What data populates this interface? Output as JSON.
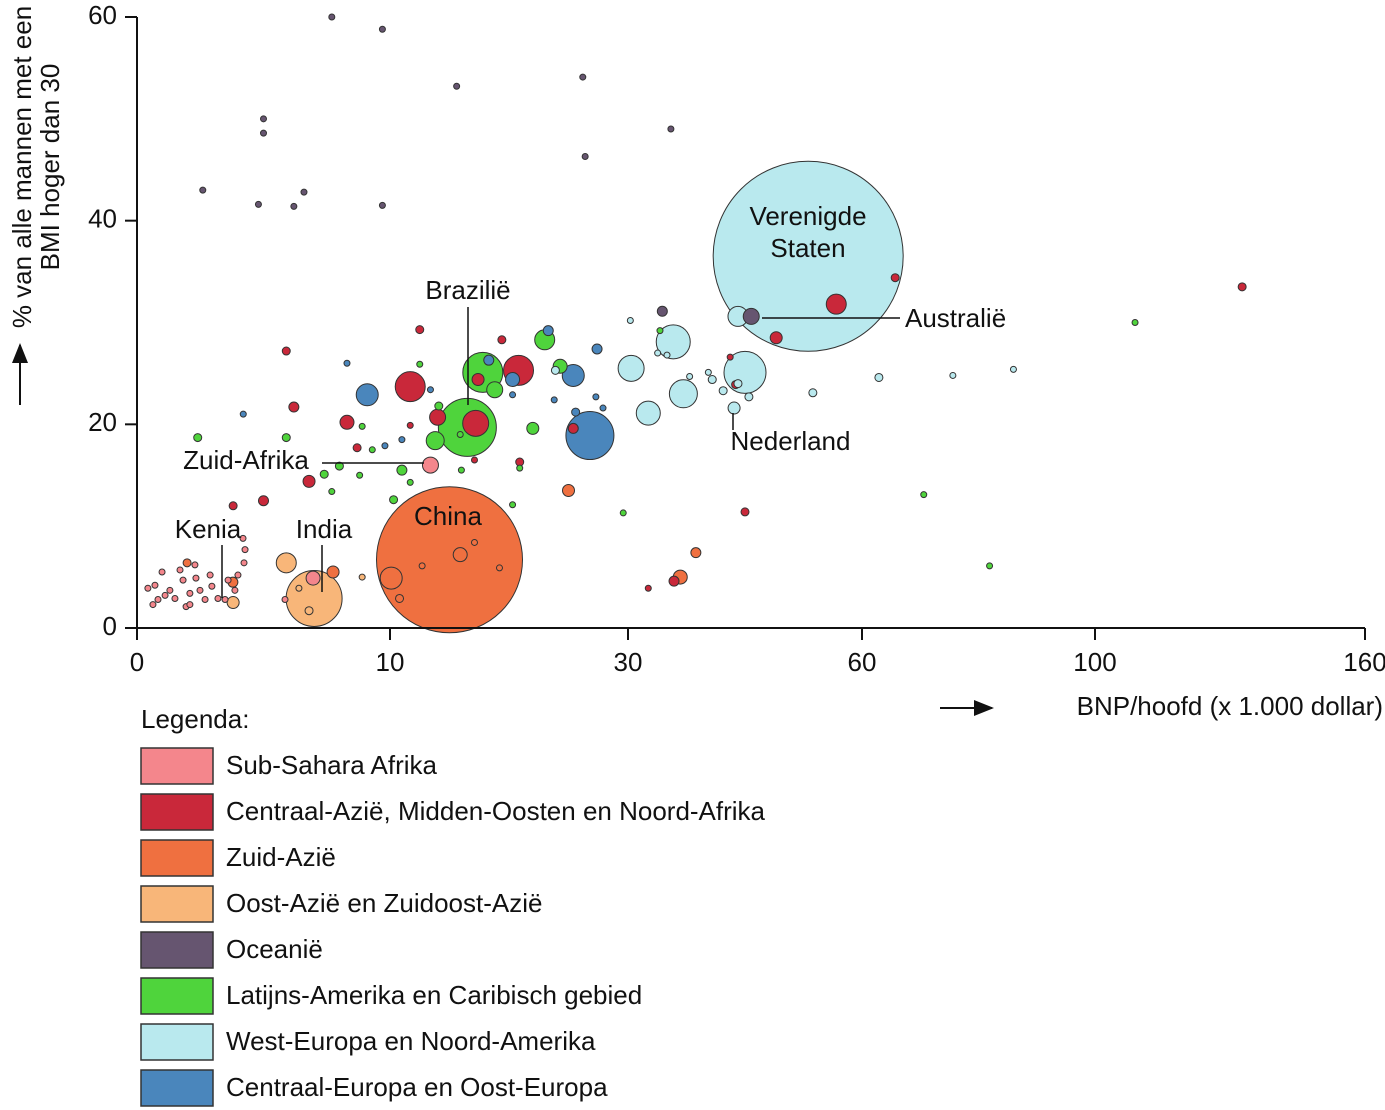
{
  "chart_data": {
    "type": "bubble",
    "y_label": "% van alle mannen met een BMI hoger dan 30",
    "x_label": "BNP/hoofd (x 1.000 dollar)",
    "legend_title": "Legenda:",
    "xlim": [
      0,
      160
    ],
    "xticks": [
      0,
      10,
      30,
      60,
      100,
      160
    ],
    "ylim": [
      0,
      60
    ],
    "yticks": [
      0,
      20,
      40,
      60
    ],
    "annotations": [
      {
        "text": "Verenigde Staten"
      },
      {
        "text": "Australië"
      },
      {
        "text": "Brazilië"
      },
      {
        "text": "Zuid-Afrika"
      },
      {
        "text": "Nederland"
      },
      {
        "text": "Kenia"
      },
      {
        "text": "India"
      },
      {
        "text": "China"
      }
    ],
    "series": [
      {
        "name": "Sub-Sahara Afrika",
        "color": "#f4868c",
        "x": [
          0.43,
          0.71,
          0.99,
          1.3,
          1.5,
          1.82,
          2.09,
          2.33,
          2.49,
          2.69,
          0.83,
          1.11,
          1.94,
          2.09,
          2.96,
          3.2,
          3.48,
          3.87,
          3.99,
          4.23,
          4.27,
          4.19,
          3.6,
          2.89,
          1.7,
          2.29,
          0.63,
          5.85,
          6.96,
          13.4
        ],
        "values": [
          3.9,
          4.2,
          5.5,
          3.7,
          2.9,
          4.7,
          3.4,
          4.9,
          3.7,
          2.8,
          2.8,
          3.2,
          2.1,
          2.3,
          4.1,
          2.9,
          2.8,
          3.7,
          5.2,
          6.4,
          7.7,
          8.8,
          4.7,
          5.2,
          5.7,
          6.2,
          2.3,
          2.8,
          4.9,
          16.0
        ],
        "sizes": [
          3,
          3,
          3,
          3,
          3,
          3,
          3,
          3,
          3,
          3,
          3,
          3,
          3,
          3,
          3,
          3,
          3,
          3,
          3,
          3,
          3,
          3,
          3,
          3,
          3,
          3,
          3,
          3,
          7,
          8
        ]
      },
      {
        "name": "Centraal-Azië, Midden-Oosten en Noord-Afrika",
        "color": "#c9283a",
        "x": [
          12.5,
          5.9,
          6.2,
          11.7,
          8.3,
          8.7,
          14.0,
          17.4,
          20.8,
          17.2,
          19.4,
          25.4,
          6.8,
          5.0,
          3.8,
          56.7,
          49.0,
          65.7,
          132.7,
          45.0,
          35.9,
          43.8,
          43.1,
          20.9,
          17.1,
          32.6,
          11.7
        ],
        "values": [
          29.3,
          27.2,
          21.7,
          23.7,
          20.2,
          17.7,
          20.7,
          24.4,
          25.3,
          20.1,
          28.3,
          19.6,
          14.4,
          12.5,
          12.0,
          31.8,
          28.5,
          34.4,
          33.5,
          11.4,
          4.6,
          23.9,
          26.6,
          16.3,
          16.5,
          3.9,
          19.9
        ],
        "sizes": [
          4,
          4,
          5,
          15,
          7,
          4,
          8,
          6,
          15,
          13,
          4,
          5,
          6,
          5,
          4,
          10,
          6,
          4,
          4,
          4,
          5,
          4,
          3,
          4,
          3,
          3,
          3
        ]
      },
      {
        "name": "Zuid-Azië",
        "color": "#ef7040",
        "x": [
          15.0,
          1.98,
          3.79,
          7.75,
          25.0,
          38.7,
          36.7,
          10.1,
          15.9,
          10.8,
          12.7,
          17.1,
          19.2
        ],
        "values": [
          6.7,
          6.4,
          4.5,
          5.5,
          13.5,
          7.4,
          5.0,
          4.9,
          7.2,
          2.9,
          6.1,
          8.4,
          5.9
        ],
        "sizes": [
          73,
          4,
          5,
          6,
          6,
          5,
          7,
          11,
          7,
          4,
          3,
          3,
          3
        ]
      },
      {
        "name": "Oost-Azië en Zuidoost-Azië",
        "color": "#f8b679",
        "x": [
          7.0,
          5.9,
          3.8,
          6.8,
          6.4,
          8.9
        ],
        "values": [
          2.9,
          6.4,
          2.5,
          1.7,
          3.9,
          5.0
        ],
        "sizes": [
          28,
          10,
          6,
          4,
          3,
          3
        ]
      },
      {
        "name": "Oceanië",
        "color": "#665570",
        "x": [
          7.7,
          9.7,
          26.2,
          15.6,
          35.5,
          5.0,
          5.0,
          26.4,
          2.6,
          4.8,
          6.2,
          6.6,
          9.7,
          34.4,
          45.8
        ],
        "values": [
          60.0,
          58.8,
          54.1,
          53.2,
          49.0,
          50.0,
          48.6,
          46.3,
          43.0,
          41.6,
          41.4,
          42.8,
          41.5,
          31.1,
          30.6
        ],
        "sizes": [
          3,
          3,
          3,
          3,
          3,
          3,
          3,
          3,
          3,
          3,
          3,
          3,
          3,
          5,
          8
        ]
      },
      {
        "name": "Latijns-Amerika en Caribisch gebied",
        "color": "#4fd43c",
        "x": [
          16.5,
          17.8,
          23.0,
          13.8,
          18.8,
          24.3,
          22.0,
          2.4,
          5.9,
          11.0,
          8.0,
          7.4,
          8.8,
          7.7,
          10.3,
          11.7,
          8.9,
          14.1,
          15.9,
          20.3,
          20.9,
          16.0,
          34.1,
          29.6,
          70.6,
          81.9,
          108.9,
          12.5,
          9.3
        ],
        "values": [
          19.7,
          25.1,
          28.3,
          18.4,
          23.4,
          25.7,
          19.6,
          18.7,
          18.7,
          15.5,
          15.9,
          15.1,
          15.0,
          13.4,
          12.6,
          14.3,
          19.8,
          21.8,
          19.0,
          12.1,
          15.7,
          15.5,
          29.2,
          11.3,
          13.1,
          6.1,
          30.0,
          25.9,
          17.5
        ],
        "sizes": [
          29,
          20,
          10,
          9,
          8,
          7,
          6,
          4,
          4,
          5,
          4,
          4,
          3,
          3,
          4,
          3,
          3,
          4,
          3,
          3,
          3,
          3,
          3,
          3,
          3,
          3,
          3,
          3,
          3
        ]
      },
      {
        "name": "West-Europa en Noord-Amerika",
        "color": "#b9e9ee",
        "x": [
          53.1,
          35.8,
          30.4,
          37.1,
          45.0,
          32.6,
          44.1,
          43.6,
          40.8,
          42.2,
          44.1,
          45.5,
          33.8,
          35.0,
          37.9,
          40.3,
          53.7,
          62.9,
          75.6,
          86.0,
          30.3,
          23.9
        ],
        "values": [
          36.5,
          28.1,
          25.5,
          23.0,
          25.1,
          21.1,
          30.6,
          21.6,
          24.4,
          23.3,
          24.0,
          22.7,
          27.0,
          26.8,
          24.7,
          25.1,
          23.1,
          24.6,
          24.8,
          25.4,
          30.2,
          25.3
        ],
        "sizes": [
          95,
          17,
          13,
          14,
          21,
          12,
          10,
          6,
          4,
          4,
          4,
          4,
          3,
          3,
          3,
          3,
          4,
          4,
          3,
          3,
          3,
          4
        ]
      },
      {
        "name": "Centraal-Europa en Oost-Europa",
        "color": "#4a86bc",
        "x": [
          26.8,
          9.1,
          25.4,
          20.3,
          18.3,
          23.3,
          27.4,
          25.6,
          20.3,
          23.8,
          27.3,
          27.9,
          8.3,
          4.2,
          9.8,
          13.4,
          11.0
        ],
        "values": [
          18.9,
          22.9,
          24.8,
          24.4,
          26.3,
          29.2,
          27.4,
          21.2,
          22.9,
          22.4,
          22.7,
          21.6,
          26.0,
          21.0,
          17.9,
          23.4,
          18.5
        ],
        "sizes": [
          24,
          11,
          11,
          7,
          5,
          5,
          5,
          4,
          3,
          3,
          3,
          3,
          3,
          3,
          3,
          3,
          3
        ]
      }
    ]
  }
}
